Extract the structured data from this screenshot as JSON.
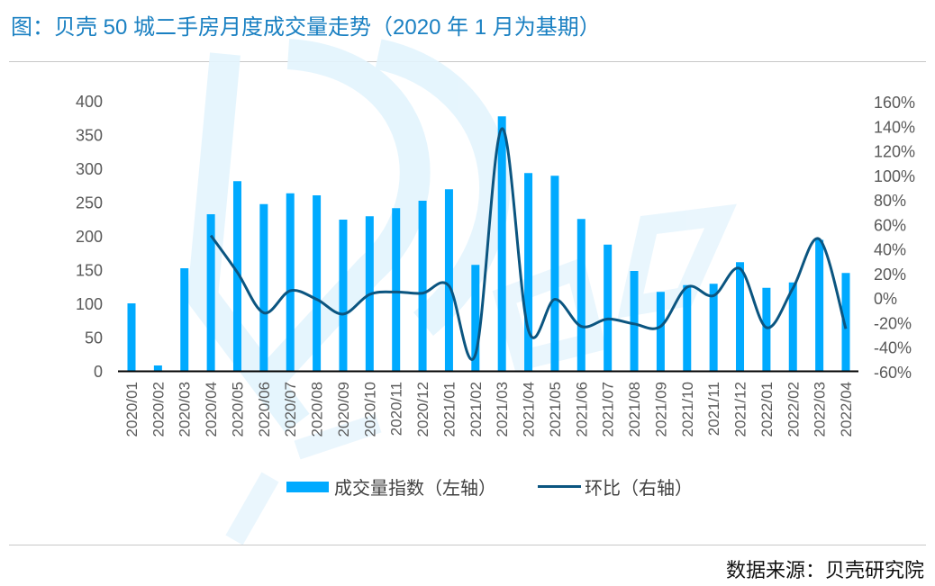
{
  "title": "图：贝壳 50 城二手房月度成交量走势（2020 年 1 月为基期）",
  "source": "数据来源：贝壳研究院",
  "colors": {
    "bar": "#00aaff",
    "line": "#0b5580",
    "title": "#1a80c2",
    "axis": "#000000",
    "tick_text": "#595959"
  },
  "legend": [
    {
      "label": "成交量指数（左轴）",
      "type": "bar"
    },
    {
      "label": "环比（右轴）",
      "type": "line"
    }
  ],
  "chart_data": {
    "type": "bar+line",
    "title": "图：贝壳 50 城二手房月度成交量走势（2020 年 1 月为基期）",
    "categories": [
      "2020/01",
      "2020/02",
      "2020/03",
      "2020/04",
      "2020/05",
      "2020/06",
      "2020/07",
      "2020/08",
      "2020/09",
      "2020/10",
      "2020/11",
      "2020/12",
      "2021/01",
      "2021/02",
      "2021/03",
      "2021/04",
      "2021/05",
      "2021/06",
      "2021/07",
      "2021/08",
      "2021/09",
      "2021/10",
      "2021/11",
      "2021/12",
      "2022/01",
      "2022/02",
      "2022/03",
      "2022/04"
    ],
    "series": [
      {
        "name": "成交量指数（左轴）",
        "type": "bar",
        "axis": "left",
        "values": [
          100,
          8,
          152,
          232,
          281,
          247,
          263,
          260,
          224,
          229,
          241,
          252,
          269,
          157,
          377,
          293,
          289,
          225,
          187,
          148,
          117,
          127,
          129,
          161,
          123,
          131,
          194,
          145
        ]
      },
      {
        "name": "环比（右轴）",
        "type": "line",
        "axis": "right",
        "unit": "%",
        "values": [
          null,
          null,
          null,
          51,
          21,
          -12,
          6,
          -1,
          -13,
          3,
          5,
          4,
          10,
          -46,
          138,
          -26,
          -1,
          -23,
          -17,
          -21,
          -23,
          9,
          2,
          24,
          -24,
          8,
          48,
          -25
        ]
      }
    ],
    "left_axis": {
      "min": 0,
      "max": 400,
      "ticks": [
        0,
        50,
        100,
        150,
        200,
        250,
        300,
        350,
        400
      ]
    },
    "right_axis": {
      "min": -60,
      "max": 160,
      "ticks": [
        "-60%",
        "-40%",
        "-20%",
        "0%",
        "20%",
        "40%",
        "60%",
        "80%",
        "100%",
        "120%",
        "140%",
        "160%"
      ]
    },
    "xlabel": "",
    "ylabel": "",
    "grid": false,
    "legend_position": "bottom"
  }
}
